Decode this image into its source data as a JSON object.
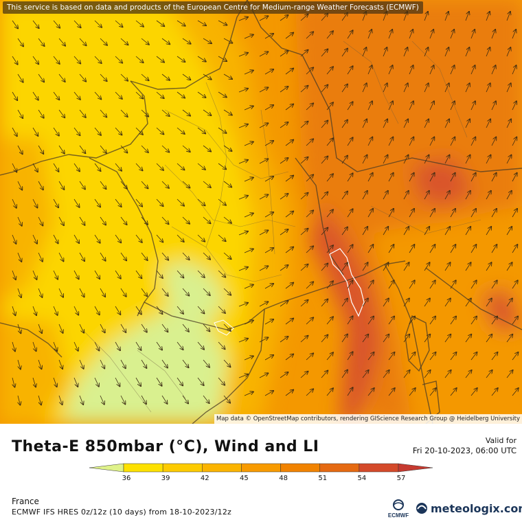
{
  "notice": "This service is based on data and products of the European Centre for Medium-range Weather Forecasts (ECMWF)",
  "attribution": "Map data © OpenStreetMap contributors, rendering GIScience Research Group @ Heidelberg University",
  "title": "Theta-E 850mbar (°C), Wind and LI",
  "valid_label": "Valid for",
  "valid_time": "Fri 20-10-2023, 06:00 UTC",
  "region": "France",
  "model_run": "ECMWF IFS HRES 0z/12z (10 days) from 18-10-2023/12z",
  "ecmwf_label": "ECMWF",
  "brand": "meteologix.com",
  "legend": {
    "ticks": [
      "36",
      "39",
      "42",
      "45",
      "48",
      "51",
      "54",
      "57"
    ],
    "colors": [
      "#dff28a",
      "#fde100",
      "#fdcb00",
      "#fbb400",
      "#f89b00",
      "#f18300",
      "#e56a12",
      "#d44a2a",
      "#c63a30"
    ]
  },
  "colors": {
    "cool": "#d9f08f",
    "yellow": "#fcd500",
    "amber": "#f8b300",
    "orange": "#f49800",
    "deep_orange": "#ea7d10",
    "red": "#d9542a",
    "brand": "#1b3559"
  }
}
